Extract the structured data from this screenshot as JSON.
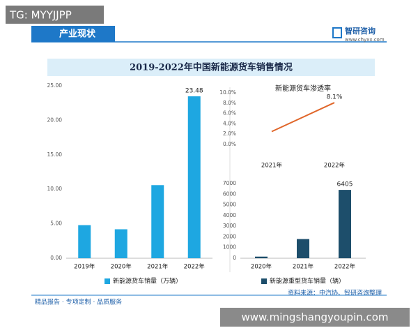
{
  "tag": "TG: MYYJJPP",
  "header": {
    "section": "产业现状",
    "brand": "智研咨询",
    "site": "www.chyxx.com"
  },
  "title": "2019-2022年中国新能源货车销售情况",
  "footer": {
    "slogan": "精品报告 · 专项定制 · 品质服务",
    "source": "资料来源：中汽协、智研咨询整理"
  },
  "watermark": "www.mingshangyoupin.com",
  "chart_data": [
    {
      "type": "bar",
      "categories": [
        "2019年",
        "2020年",
        "2021年",
        "2022年"
      ],
      "series": [
        {
          "name": "新能源货车销量（万辆）",
          "color": "#1ea7e1",
          "values": [
            4.8,
            4.2,
            10.6,
            23.48
          ],
          "value_labels": [
            null,
            null,
            null,
            "23.48"
          ]
        }
      ],
      "ylim": [
        0,
        25
      ],
      "yticks": [
        {
          "value": 0,
          "label": "0.00"
        },
        {
          "value": 5,
          "label": "5.00"
        },
        {
          "value": 10,
          "label": "10.00"
        },
        {
          "value": 15,
          "label": "15.00"
        },
        {
          "value": 20,
          "label": "20.00"
        },
        {
          "value": 25,
          "label": "25.00"
        }
      ],
      "grid": false
    },
    {
      "type": "line",
      "title": "新能源货车渗透率",
      "categories": [
        "2021年",
        "2022年"
      ],
      "series": [
        {
          "name": null,
          "color": "#e0662a",
          "values": [
            2.5,
            8.1
          ],
          "value_labels": [
            null,
            "8.1%"
          ]
        }
      ],
      "ylim": [
        0,
        10
      ],
      "yticks": [
        {
          "value": 0,
          "label": "0.0%"
        },
        {
          "value": 2,
          "label": "2.0%"
        },
        {
          "value": 4,
          "label": "4.0%"
        },
        {
          "value": 6,
          "label": "6.0%"
        },
        {
          "value": 8,
          "label": "8.0%"
        },
        {
          "value": 10,
          "label": "10.0%"
        }
      ],
      "grid": false
    },
    {
      "type": "bar",
      "categories": [
        "2020年",
        "2021年",
        "2022年"
      ],
      "series": [
        {
          "name": "新能源重型货车销量（辆）",
          "color": "#1d4e6b",
          "values": [
            150,
            1800,
            6405
          ],
          "value_labels": [
            null,
            null,
            "6405"
          ]
        }
      ],
      "ylim": [
        0,
        7000
      ],
      "yticks": [
        0,
        1000,
        2000,
        3000,
        4000,
        5000,
        6000,
        7000
      ],
      "grid": false
    }
  ]
}
